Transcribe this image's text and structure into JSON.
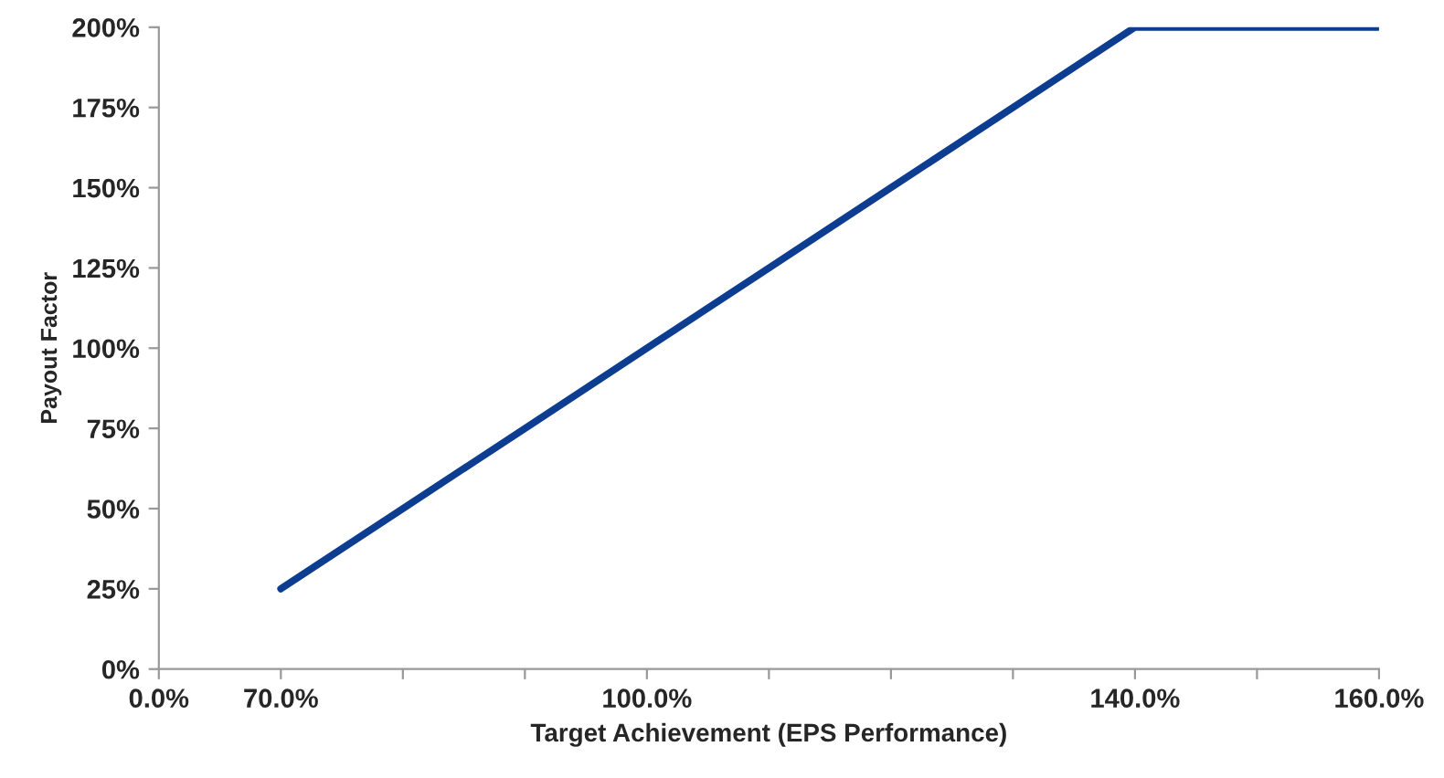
{
  "chart_data": {
    "type": "line",
    "xlabel": "Target Achievement (EPS Performance)",
    "ylabel": "Payout Factor",
    "categories": [
      "0.0%",
      "70.0%",
      null,
      null,
      "100.0%",
      null,
      null,
      null,
      "140.0%",
      null,
      "160.0%"
    ],
    "series": [
      {
        "color": "#0d3d91",
        "values": [
          null,
          25,
          50,
          75,
          100,
          125,
          150,
          175,
          200,
          200,
          200
        ]
      }
    ],
    "ylim": [
      0,
      200
    ],
    "yticks": [
      {
        "value": 0,
        "label": "0%"
      },
      {
        "value": 25,
        "label": "25%"
      },
      {
        "value": 50,
        "label": "50%"
      },
      {
        "value": 75,
        "label": "75%"
      },
      {
        "value": 100,
        "label": "100%"
      },
      {
        "value": 125,
        "label": "125%"
      },
      {
        "value": 150,
        "label": "150%"
      },
      {
        "value": 175,
        "label": "175%"
      },
      {
        "value": 200,
        "label": "200%"
      }
    ],
    "grid": false,
    "legend": false,
    "marker": "none",
    "line_style": "solid"
  }
}
